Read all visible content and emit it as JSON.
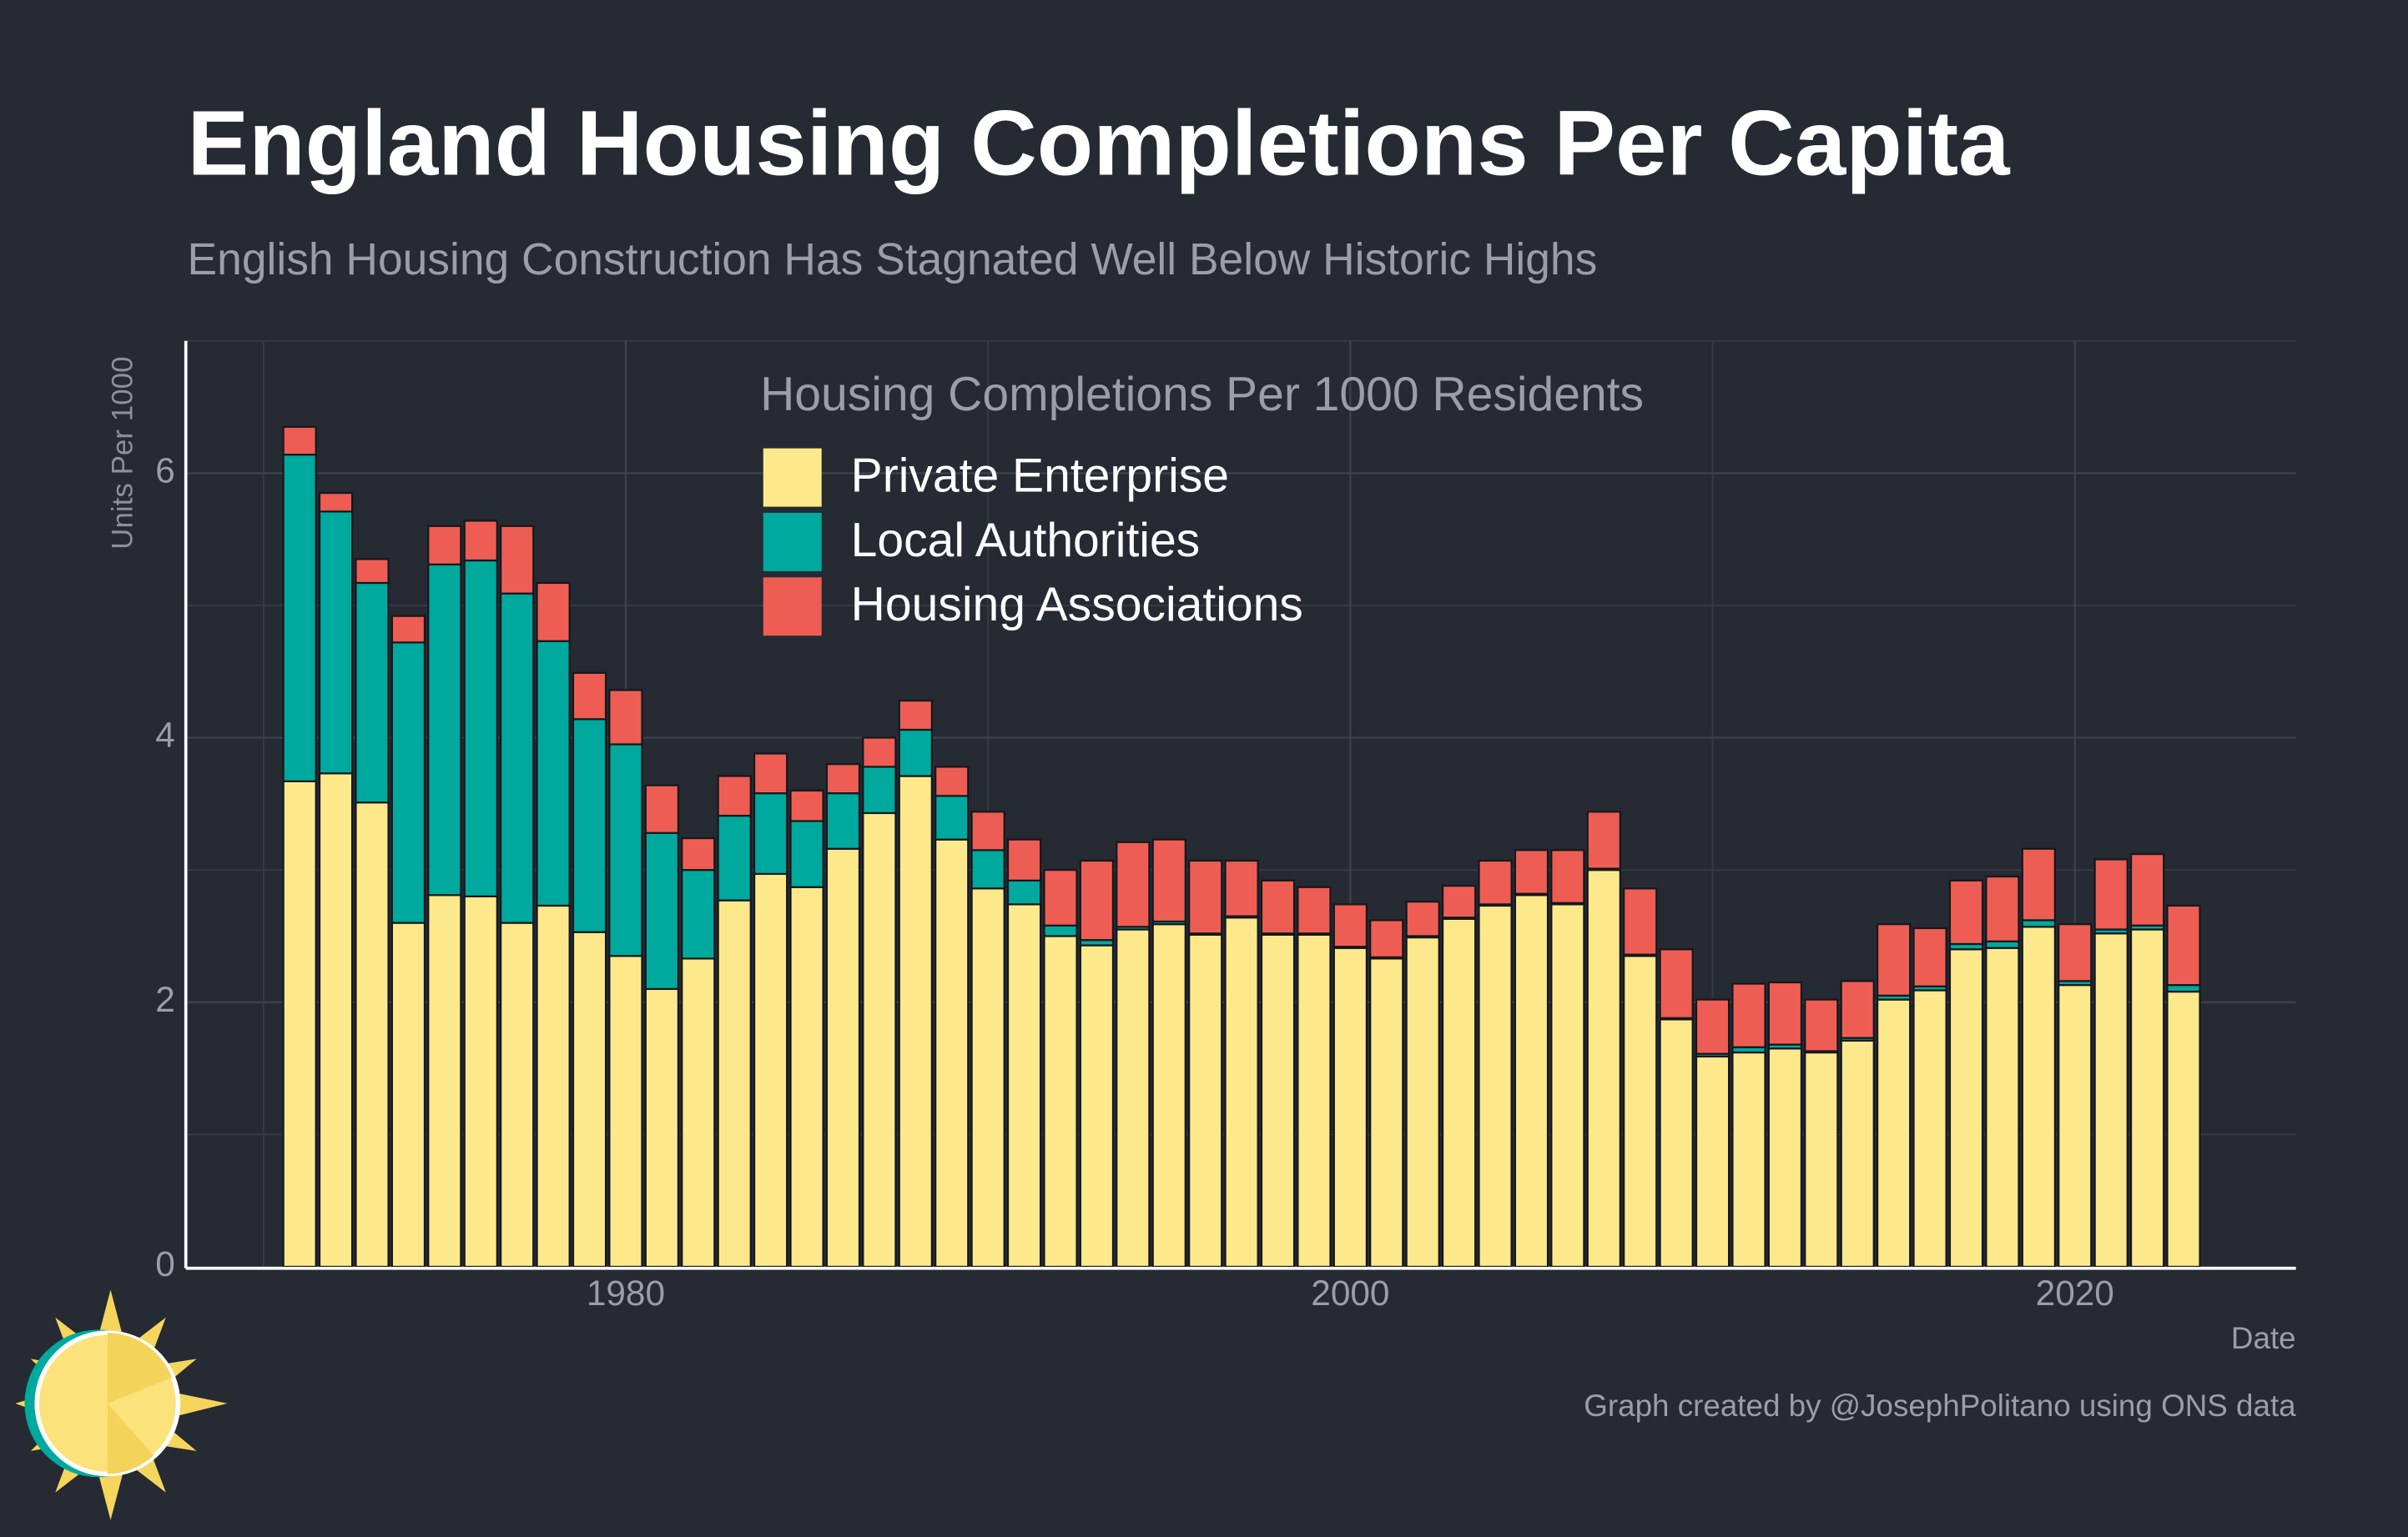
{
  "chart_data": {
    "type": "stacked_bar",
    "title": "England Housing Completions Per Capita",
    "subtitle": "English Housing Construction Has Stagnated Well Below Historic Highs",
    "legend_title": "Housing Completions Per 1000 Residents",
    "y_label": "Units Per 1000",
    "x_label": "Date",
    "caption": "Graph created by @JosephPolitano using ONS data",
    "x": [
      1971,
      1972,
      1973,
      1974,
      1975,
      1976,
      1977,
      1978,
      1979,
      1980,
      1981,
      1982,
      1983,
      1984,
      1985,
      1986,
      1987,
      1988,
      1989,
      1990,
      1991,
      1992,
      1993,
      1994,
      1995,
      1996,
      1997,
      1998,
      1999,
      2000,
      2001,
      2002,
      2003,
      2004,
      2005,
      2006,
      2007,
      2008,
      2009,
      2010,
      2011,
      2012,
      2013,
      2014,
      2015,
      2016,
      2017,
      2018,
      2019,
      2020,
      2021,
      2022,
      2023
    ],
    "series": [
      {
        "name": "Private Enterprise",
        "color": "#fde98c",
        "values": [
          3.67,
          3.73,
          3.51,
          2.6,
          2.81,
          2.8,
          2.6,
          2.73,
          2.53,
          2.35,
          2.1,
          2.33,
          2.77,
          2.97,
          2.87,
          3.16,
          3.43,
          3.71,
          3.23,
          2.86,
          2.74,
          2.5,
          2.43,
          2.55,
          2.59,
          2.51,
          2.64,
          2.51,
          2.51,
          2.41,
          2.33,
          2.49,
          2.63,
          2.73,
          2.81,
          2.74,
          3.0,
          2.35,
          1.87,
          1.59,
          1.62,
          1.65,
          1.62,
          1.71,
          2.02,
          2.09,
          2.4,
          2.41,
          2.57,
          2.13,
          2.52,
          2.55,
          2.08
        ]
      },
      {
        "name": "Local Authorities",
        "color": "#00a99d",
        "values": [
          2.47,
          1.98,
          1.66,
          2.12,
          2.5,
          2.54,
          2.49,
          2.0,
          1.61,
          1.6,
          1.18,
          0.67,
          0.64,
          0.61,
          0.5,
          0.42,
          0.35,
          0.35,
          0.33,
          0.29,
          0.18,
          0.08,
          0.04,
          0.02,
          0.02,
          0.01,
          0.01,
          0.01,
          0.01,
          0.01,
          0.01,
          0.01,
          0.01,
          0.01,
          0.01,
          0.01,
          0.01,
          0.01,
          0.01,
          0.02,
          0.04,
          0.03,
          0.01,
          0.02,
          0.03,
          0.03,
          0.04,
          0.05,
          0.05,
          0.03,
          0.03,
          0.03,
          0.05
        ]
      },
      {
        "name": "Housing Associations",
        "color": "#ee5d54",
        "values": [
          0.21,
          0.14,
          0.18,
          0.2,
          0.29,
          0.3,
          0.51,
          0.44,
          0.35,
          0.41,
          0.36,
          0.24,
          0.3,
          0.3,
          0.23,
          0.22,
          0.22,
          0.22,
          0.22,
          0.29,
          0.31,
          0.42,
          0.6,
          0.64,
          0.62,
          0.55,
          0.42,
          0.4,
          0.35,
          0.32,
          0.28,
          0.26,
          0.24,
          0.33,
          0.33,
          0.4,
          0.43,
          0.5,
          0.52,
          0.41,
          0.48,
          0.47,
          0.39,
          0.43,
          0.54,
          0.44,
          0.48,
          0.49,
          0.54,
          0.43,
          0.53,
          0.54,
          0.6
        ]
      }
    ],
    "xlim": [
      1967.9,
      2026.1
    ],
    "xticks": [
      1980,
      2000,
      2020
    ],
    "xminorticks": [
      1970,
      1990,
      2010
    ],
    "ylim": [
      0,
      7
    ],
    "yticks": [
      0,
      2,
      4,
      6
    ],
    "yminorticks": [
      1,
      3,
      5,
      7
    ],
    "grid": true
  }
}
